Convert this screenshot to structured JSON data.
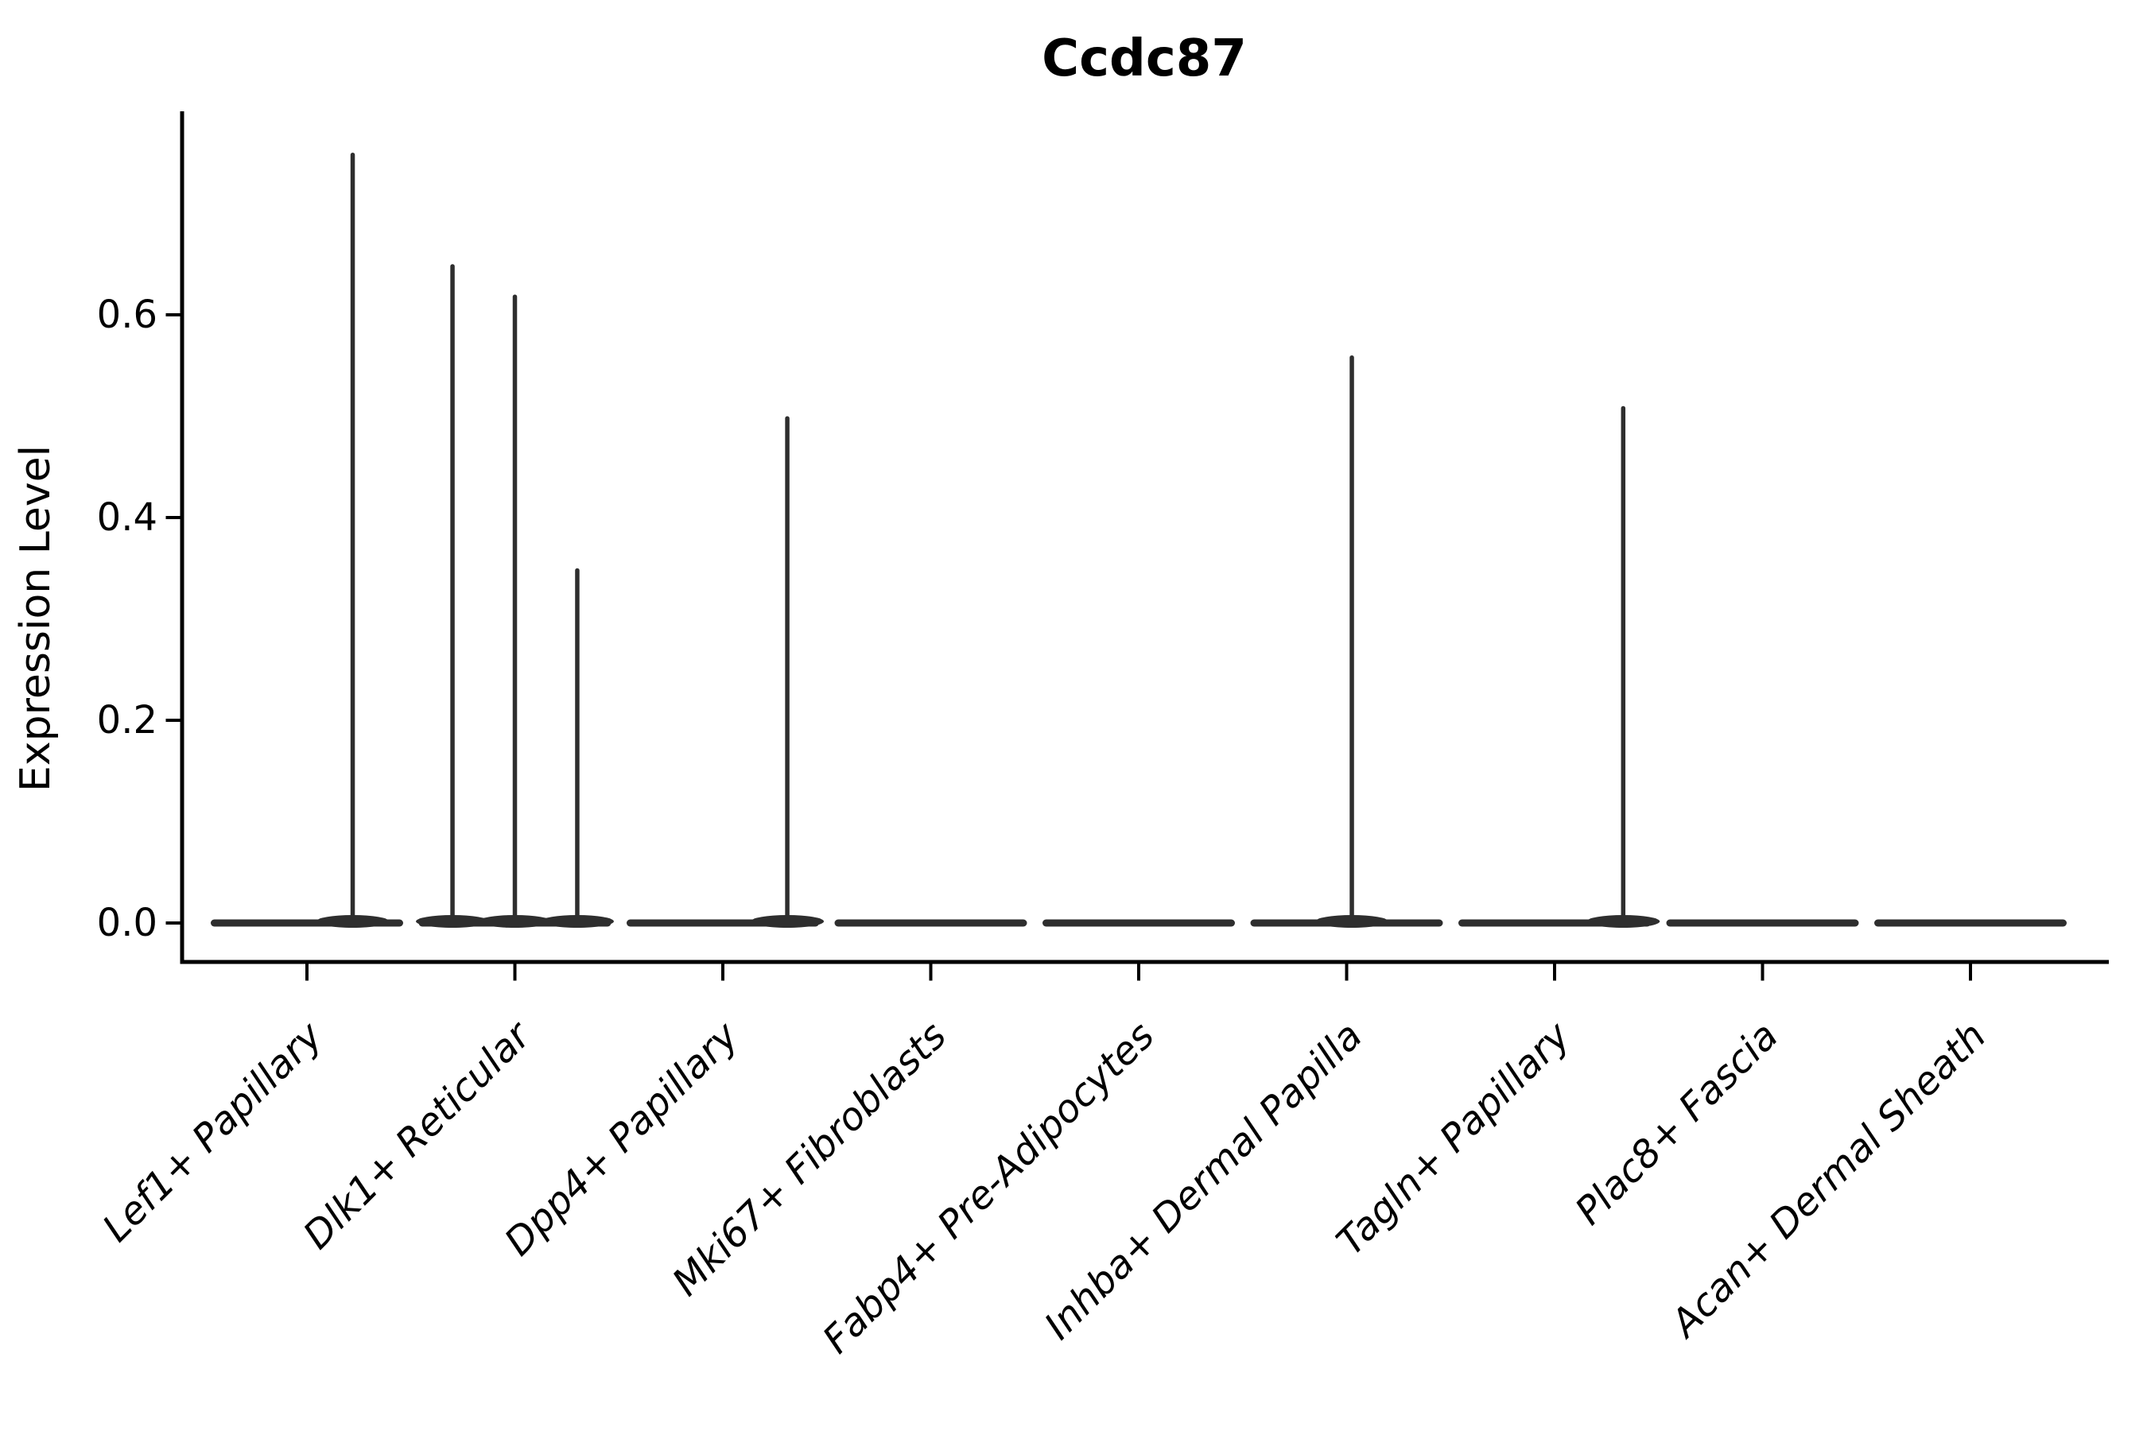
{
  "title": "Ccdc87",
  "y_axis": {
    "label": "Expression Level",
    "tick_labels": [
      "0.0",
      "0.2",
      "0.4",
      "0.6"
    ],
    "tick_values": [
      0.0,
      0.2,
      0.4,
      0.6
    ]
  },
  "colors": {
    "violin": "#2e2e2e",
    "axis": "#000000",
    "text": "#000000",
    "background": "#ffffff"
  },
  "chart_data": {
    "type": "violin",
    "title": "Ccdc87",
    "xlabel": "",
    "ylabel": "Expression Level",
    "ylim": [
      -0.04,
      0.8
    ],
    "yticks": [
      0.0,
      0.2,
      0.4,
      0.6
    ],
    "grid": false,
    "legend": "none",
    "x_tick_rotation_deg": 45,
    "categories": [
      "Lef1+ Papillary",
      "Dlk1+ Reticular",
      "Dpp4+ Papillary",
      "Mki67+ Fibroblasts",
      "Fabp4+ Pre-Adipocytes",
      "Inhba+ Dermal Papilla",
      "Tagln+ Papillary",
      "Plac8+ Fascia",
      "Acan+ Dermal Sheath"
    ],
    "description": "Violin plot of Ccdc87 expression per fibroblast cluster; nearly all cells at 0 (flat wide base), rare expressing cells form thin vertical density spikes",
    "violins": [
      {
        "label": "Lef1+ Papillary",
        "bulk_value": 0,
        "max_expression": 0.76,
        "spikes": [
          {
            "offset": 0.22,
            "value": 0.76
          }
        ]
      },
      {
        "label": "Dlk1+ Reticular",
        "bulk_value": 0,
        "max_expression": 0.65,
        "spikes": [
          {
            "offset": -0.3,
            "value": 0.65
          },
          {
            "offset": 0.0,
            "value": 0.62
          },
          {
            "offset": 0.3,
            "value": 0.35
          }
        ]
      },
      {
        "label": "Dpp4+ Papillary",
        "bulk_value": 0,
        "max_expression": 0.5,
        "spikes": [
          {
            "offset": 0.31,
            "value": 0.5
          }
        ]
      },
      {
        "label": "Mki67+ Fibroblasts",
        "bulk_value": 0,
        "max_expression": 0.0,
        "spikes": []
      },
      {
        "label": "Fabp4+ Pre-Adipocytes",
        "bulk_value": 0,
        "max_expression": 0.0,
        "spikes": []
      },
      {
        "label": "Inhba+ Dermal Papilla",
        "bulk_value": 0,
        "max_expression": 0.56,
        "spikes": [
          {
            "offset": 0.025,
            "value": 0.56
          }
        ]
      },
      {
        "label": "Tagln+ Papillary",
        "bulk_value": 0,
        "max_expression": 0.51,
        "spikes": [
          {
            "offset": 0.33,
            "value": 0.51
          }
        ]
      },
      {
        "label": "Plac8+ Fascia",
        "bulk_value": 0,
        "max_expression": 0.0,
        "spikes": []
      },
      {
        "label": "Acan+ Dermal Sheath",
        "bulk_value": 0,
        "max_expression": 0.0,
        "spikes": []
      }
    ]
  }
}
